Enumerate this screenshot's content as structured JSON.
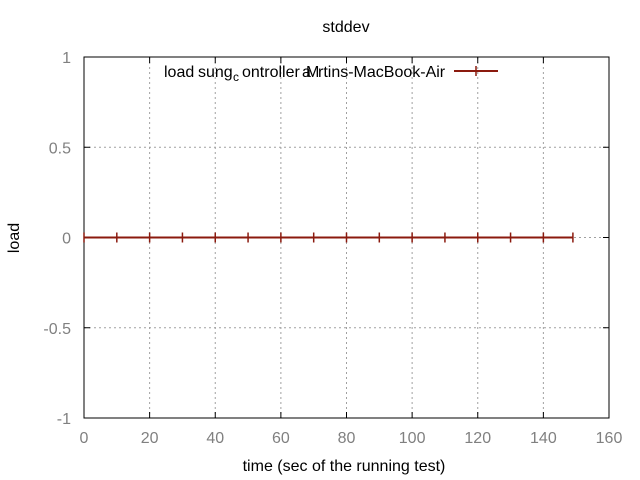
{
  "chart_data": {
    "type": "line",
    "title": "stddev",
    "xlabel": "time (sec of the running test)",
    "ylabel": "load",
    "xlim": [
      0,
      160
    ],
    "ylim": [
      -1,
      1
    ],
    "xticks": [
      0,
      20,
      40,
      60,
      80,
      100,
      120,
      140,
      160
    ],
    "yticks": [
      1,
      0.5,
      0,
      -0.5,
      -1
    ],
    "xtick_labels": [
      "0",
      "20",
      "40",
      "60",
      "80",
      "100",
      "120",
      "140",
      "160"
    ],
    "ytick_labels": [
      "1",
      "0.5",
      "0",
      "-0.5",
      "-1"
    ],
    "grid": true,
    "legend_position": "top",
    "legend_text": {
      "part1": "load",
      "part2": "sung",
      "subscript": "c",
      "part3": "ontroller",
      "part4": "a",
      "part5": "M",
      "part6": "rtins-MacBook-Air"
    },
    "series": [
      {
        "name": "load tsung_controller@Martins-MacBook-Air",
        "color": "#8b1a0e",
        "x": [
          0,
          10,
          20,
          30,
          40,
          50,
          60,
          70,
          80,
          90,
          100,
          110,
          120,
          130,
          140,
          149
        ],
        "y": [
          0,
          0,
          0,
          0,
          0,
          0,
          0,
          0,
          0,
          0,
          0,
          0,
          0,
          0,
          0,
          0
        ]
      }
    ]
  }
}
